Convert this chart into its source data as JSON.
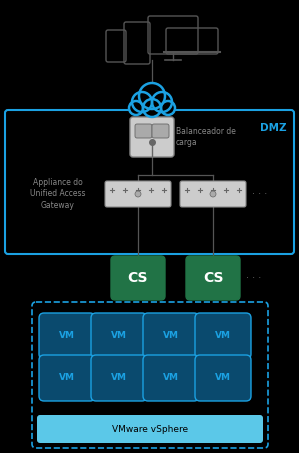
{
  "bg_color": "#000000",
  "dmz_edge_color": "#1ba1e2",
  "dmz_label": "DMZ",
  "dmz_label_color": "#1ba1e2",
  "cloud_color": "#1ba1e2",
  "balancer_label": "Balanceador de\ncarga",
  "uag_label": "Appliance do\nUnified Access\nGateway",
  "cs_color": "#217346",
  "cs_label": "CS",
  "vm_face_color": "#0a4a6e",
  "vm_edge_color": "#1ba1e2",
  "vm_label": "VM",
  "vm_label_color": "#1ba1e2",
  "vsphere_bar_color": "#5bc8e8",
  "vsphere_label": "VMware vSphere",
  "vsphere_label_color": "#000000",
  "vsphere_edge_color": "#1ba1e2",
  "dots_color": "#666666",
  "line_color": "#555555",
  "device_color": "#555555",
  "switch_color": "#888888",
  "balancer_face": "#cccccc",
  "balancer_edge": "#888888",
  "text_gray": "#888888"
}
